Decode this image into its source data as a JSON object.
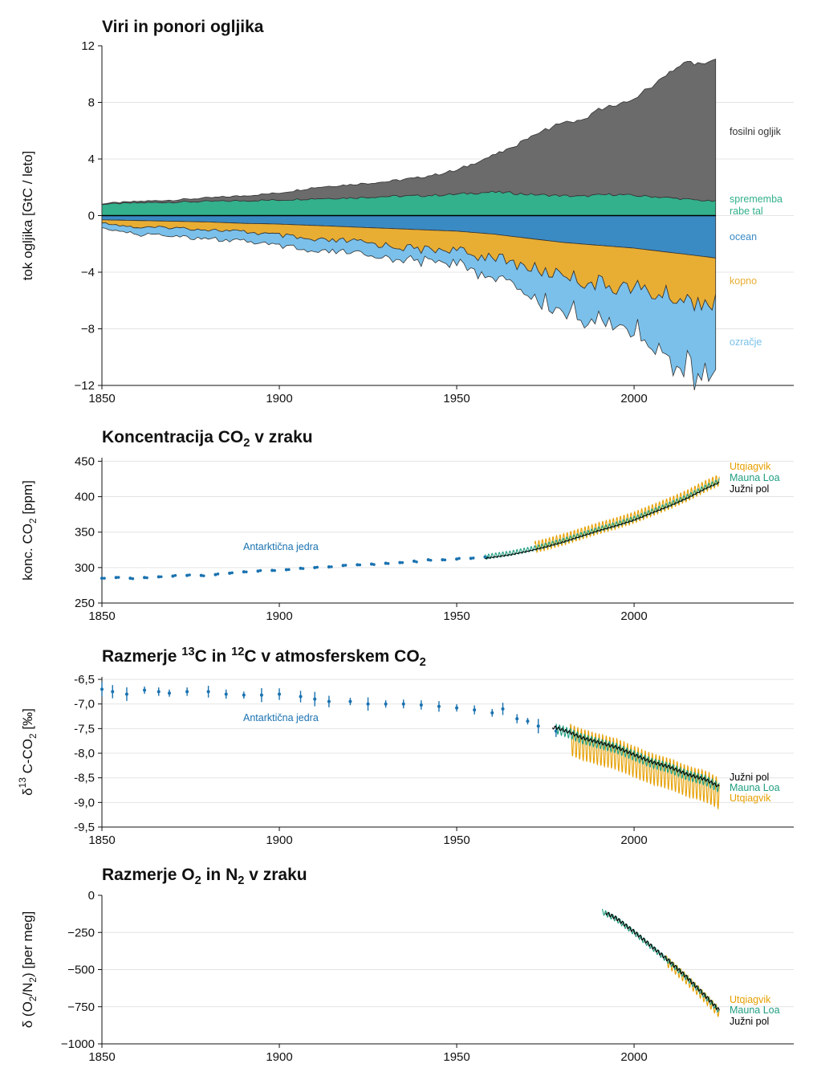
{
  "colors": {
    "fossil": "#6b6b6b",
    "land_use": "#33b08c",
    "ocean": "#3a8ac4",
    "land": "#e8ad33",
    "atmosphere": "#7ac0ea",
    "ice_core": "#1a72b0",
    "utqiagvik": "#e69f00",
    "mauna_loa": "#1f9e80",
    "south_pole": "#000000"
  },
  "chart_data": [
    {
      "type": "area",
      "title": "Viri in ponori ogljika",
      "ylabel": "tok ogljika [GtC / leto]",
      "xlim": [
        1850,
        2045
      ],
      "ylim": [
        -12,
        12
      ],
      "xticks": [
        "1850",
        "1900",
        "1950",
        "2000"
      ],
      "yticks": [
        "12",
        "8",
        "4",
        "0",
        "−4",
        "−8",
        "−12"
      ],
      "grid": true,
      "x": [
        1850,
        1860,
        1870,
        1880,
        1890,
        1900,
        1910,
        1920,
        1930,
        1940,
        1950,
        1955,
        1960,
        1965,
        1970,
        1975,
        1980,
        1985,
        1990,
        1995,
        2000,
        2005,
        2010,
        2015,
        2020,
        2023
      ],
      "series": [
        {
          "name": "fosilni ogljik",
          "color_key": "fossil",
          "values": [
            0.05,
            0.1,
            0.15,
            0.25,
            0.35,
            0.5,
            0.8,
            0.95,
            1.05,
            1.3,
            1.7,
            2.1,
            2.6,
            3.1,
            4.0,
            4.6,
            5.2,
            5.3,
            6.0,
            6.3,
            6.8,
            7.8,
            8.9,
            9.7,
            9.6,
            10.1
          ]
        },
        {
          "name": "sprememba rabe tal",
          "color_key": "land_use",
          "values": [
            0.8,
            0.9,
            0.95,
            1.0,
            1.05,
            1.1,
            1.2,
            1.25,
            1.35,
            1.4,
            1.5,
            1.6,
            1.65,
            1.6,
            1.5,
            1.45,
            1.4,
            1.35,
            1.45,
            1.5,
            1.4,
            1.35,
            1.25,
            1.15,
            1.05,
            1.0
          ]
        },
        {
          "name": "ocean",
          "color_key": "ocean",
          "values": [
            -0.3,
            -0.35,
            -0.4,
            -0.45,
            -0.55,
            -0.6,
            -0.7,
            -0.8,
            -0.9,
            -1.0,
            -1.1,
            -1.2,
            -1.3,
            -1.45,
            -1.6,
            -1.75,
            -1.9,
            -2.0,
            -2.1,
            -2.2,
            -2.3,
            -2.45,
            -2.6,
            -2.75,
            -2.9,
            -3.0
          ]
        },
        {
          "name": "kopno",
          "color_key": "land",
          "values": [
            -0.2,
            -0.5,
            -0.45,
            -0.55,
            -0.6,
            -0.8,
            -1.1,
            -1.0,
            -1.2,
            -1.4,
            -1.3,
            -1.7,
            -1.5,
            -1.9,
            -2.0,
            -2.3,
            -2.1,
            -2.6,
            -2.7,
            -2.8,
            -2.7,
            -3.1,
            -3.0,
            -3.3,
            -3.1,
            -3.3
          ]
        },
        {
          "name": "ozračje",
          "color_key": "atmosphere",
          "values": [
            -0.35,
            -0.5,
            -0.55,
            -0.65,
            -0.7,
            -0.8,
            -0.9,
            -0.8,
            -0.9,
            -0.8,
            -0.9,
            -1.1,
            -1.5,
            -1.3,
            -2.0,
            -2.1,
            -2.6,
            -2.4,
            -2.7,
            -2.6,
            -3.2,
            -3.6,
            -4.3,
            -4.8,
            -5.1,
            -5.2
          ]
        }
      ],
      "labels": [
        {
          "text": "fosilni ogljik",
          "color_key": "fossil"
        },
        {
          "text": "sprememba rabe tal",
          "color_key": "land_use"
        },
        {
          "text": "ocean",
          "color_key": "ocean"
        },
        {
          "text": "kopno",
          "color_key": "land"
        },
        {
          "text": "ozračje",
          "color_key": "atmosphere"
        }
      ]
    },
    {
      "type": "scatter",
      "title_parts": [
        "Koncentracija CO",
        "2",
        " v zraku"
      ],
      "ylabel_parts": [
        "konc. CO",
        "2",
        " [ppm]"
      ],
      "xlim": [
        1850,
        2045
      ],
      "ylim": [
        250,
        455
      ],
      "xticks": [
        "1850",
        "1900",
        "1950",
        "2000"
      ],
      "yticks": [
        "450",
        "400",
        "350",
        "300",
        "250"
      ],
      "grid": true,
      "annotation": {
        "text": "Antarktična jedra",
        "color_key": "ice_core"
      },
      "ice_cores": {
        "x": [
          1850,
          1854,
          1858,
          1862,
          1866,
          1870,
          1874,
          1878,
          1882,
          1886,
          1890,
          1894,
          1898,
          1902,
          1906,
          1910,
          1914,
          1918,
          1922,
          1926,
          1930,
          1934,
          1938,
          1942,
          1946,
          1950,
          1954,
          1958
        ],
        "y": [
          285,
          286,
          285,
          286,
          287,
          288,
          289,
          289,
          290,
          292,
          294,
          295,
          296,
          297,
          299,
          300,
          301,
          303,
          304,
          305,
          306,
          307,
          309,
          311,
          311,
          312,
          313,
          315
        ]
      },
      "instrumental": {
        "x": [
          1958,
          1965,
          1970,
          1975,
          1980,
          1985,
          1990,
          1995,
          2000,
          2005,
          2010,
          2015,
          2020,
          2024
        ],
        "y": [
          315,
          320,
          325,
          331,
          338,
          346,
          354,
          361,
          369,
          379,
          389,
          400,
          413,
          422
        ]
      },
      "station_labels": [
        {
          "text": "Utqiagvik",
          "color_key": "utqiagvik"
        },
        {
          "text": "Mauna Loa",
          "color_key": "mauna_loa"
        },
        {
          "text": "Južni pol",
          "color_key": "south_pole"
        }
      ]
    },
    {
      "type": "scatter",
      "title_parts": [
        "Razmerje ",
        "13",
        "C in ",
        "12",
        "C v atmosferskem CO",
        "2"
      ],
      "ylabel_parts": [
        "δ",
        "13",
        " C-CO",
        "2",
        " [‰]"
      ],
      "xlim": [
        1850,
        2045
      ],
      "ylim": [
        -9.5,
        -6.5
      ],
      "xticks": [
        "1850",
        "1900",
        "1950",
        "2000"
      ],
      "yticks": [
        "-6,5",
        "-7,0",
        "-7,5",
        "-8,0",
        "-8,5",
        "-9,0",
        "-9,5"
      ],
      "grid": true,
      "annotation": {
        "text": "Antarktična jedra",
        "color_key": "ice_core"
      },
      "ice_cores": {
        "x": [
          1850,
          1853,
          1857,
          1862,
          1866,
          1869,
          1874,
          1880,
          1885,
          1890,
          1895,
          1900,
          1906,
          1910,
          1914,
          1920,
          1925,
          1930,
          1935,
          1940,
          1945,
          1950,
          1955,
          1960,
          1963,
          1967,
          1970,
          1973,
          1978
        ],
        "y": [
          -6.7,
          -6.75,
          -6.8,
          -6.72,
          -6.75,
          -6.78,
          -6.75,
          -6.75,
          -6.8,
          -6.82,
          -6.82,
          -6.8,
          -6.85,
          -6.9,
          -6.95,
          -6.95,
          -7.0,
          -7.0,
          -7.0,
          -7.02,
          -7.05,
          -7.08,
          -7.12,
          -7.18,
          -7.1,
          -7.3,
          -7.35,
          -7.45,
          -7.55
        ]
      },
      "instrumental": {
        "x": [
          1978,
          1982,
          1985,
          1990,
          1995,
          2000,
          2005,
          2010,
          2015,
          2020,
          2024
        ],
        "y": [
          -7.5,
          -7.6,
          -7.7,
          -7.8,
          -7.9,
          -8.05,
          -8.2,
          -8.3,
          -8.45,
          -8.55,
          -8.7
        ]
      },
      "station_labels": [
        {
          "text": "Južni pol",
          "color_key": "south_pole"
        },
        {
          "text": "Mauna Loa",
          "color_key": "mauna_loa"
        },
        {
          "text": "Utqiagvik",
          "color_key": "utqiagvik"
        }
      ]
    },
    {
      "type": "line",
      "title_parts": [
        "Razmerje O",
        "2",
        " in N",
        "2",
        " v zraku"
      ],
      "ylabel_parts": [
        "δ (O",
        "2",
        "/N",
        "2",
        ") [per meg]"
      ],
      "xlim": [
        1850,
        2045
      ],
      "ylim": [
        -1000,
        0
      ],
      "xticks": [
        "1850",
        "1900",
        "1950",
        "2000"
      ],
      "yticks": [
        "0",
        "−250",
        "−500",
        "−750",
        "−1000"
      ],
      "grid": true,
      "instrumental": {
        "x": [
          1991,
          1995,
          2000,
          2005,
          2010,
          2015,
          2020,
          2024
        ],
        "y": [
          -110,
          -160,
          -250,
          -350,
          -450,
          -560,
          -680,
          -780
        ]
      },
      "station_labels": [
        {
          "text": "Utqiagvik",
          "color_key": "utqiagvik"
        },
        {
          "text": "Mauna Loa",
          "color_key": "mauna_loa"
        },
        {
          "text": "Južni pol",
          "color_key": "south_pole"
        }
      ]
    }
  ]
}
